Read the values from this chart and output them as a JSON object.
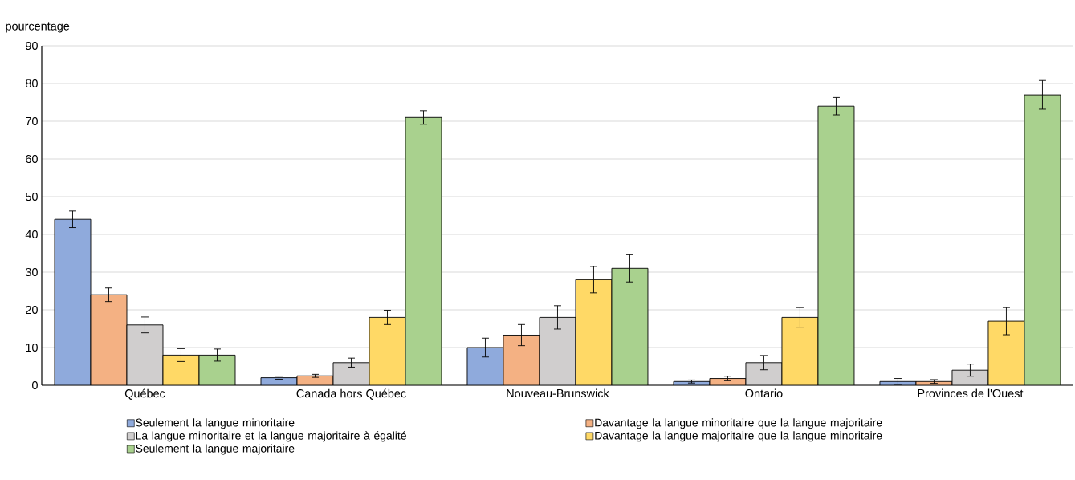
{
  "chart_data": {
    "type": "bar",
    "ylabel": "pourcentage",
    "categories": [
      "Québec",
      "Canada hors Québec",
      "Nouveau-Brunswick",
      "Ontario",
      "Provinces de l'Ouest"
    ],
    "series": [
      {
        "name": "Seulement la langue minoritaire",
        "color": "#8faadc",
        "values": [
          44,
          2,
          10,
          1,
          1
        ],
        "errors": [
          2.2,
          0.4,
          2.5,
          0.4,
          0.8
        ]
      },
      {
        "name": "Davantage la langue minoritaire que la langue majoritaire",
        "color": "#f4b183",
        "values": [
          24,
          2.5,
          13.3,
          1.8,
          1
        ],
        "errors": [
          1.8,
          0.4,
          2.8,
          0.6,
          0.5
        ]
      },
      {
        "name": "La langue minoritaire et la langue majoritaire à égalité",
        "color": "#d0cece",
        "values": [
          16,
          6,
          18,
          6,
          4
        ],
        "errors": [
          2.1,
          1.2,
          3.1,
          1.9,
          1.6
        ]
      },
      {
        "name": "Davantage la langue majoritaire que la langue minoritaire",
        "color": "#ffd966",
        "values": [
          8,
          18,
          28,
          18,
          17
        ],
        "errors": [
          1.7,
          1.9,
          3.5,
          2.6,
          3.6
        ]
      },
      {
        "name": "Seulement la langue majoritaire",
        "color": "#a9d18e",
        "values": [
          8,
          71,
          31,
          74,
          77
        ],
        "errors": [
          1.6,
          1.8,
          3.6,
          2.3,
          3.8
        ]
      }
    ],
    "ylim": [
      0,
      90
    ],
    "yticks": [
      0,
      10,
      20,
      30,
      40,
      50,
      60,
      70,
      80,
      90
    ],
    "grid": "y",
    "legend": "bottom"
  }
}
